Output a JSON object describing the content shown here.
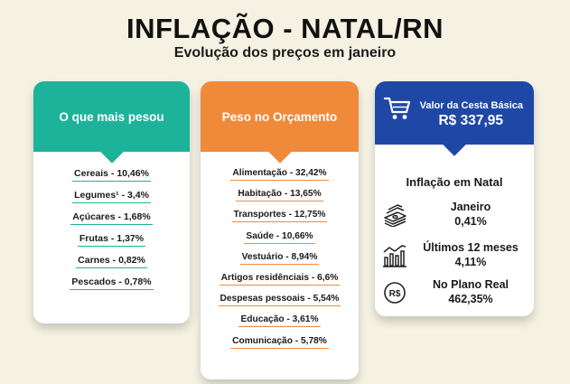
{
  "header": {
    "title": "INFLAÇÃO - NATAL/RN",
    "subtitle": "Evolução dos preços em janeiro"
  },
  "card_mais_pesou": {
    "title": "O que mais pesou",
    "color": "#1db39b",
    "items": [
      "Cereais - 10,46%",
      "Legumes¹ - 3,4%",
      "Açúcares - 1,68%",
      "Frutas - 1,37%",
      "Carnes - 0,82%",
      "Pescados - 0,78%"
    ]
  },
  "card_orcamento": {
    "title": "Peso no Orçamento",
    "color": "#f08a3b",
    "items": [
      "Alimentação - 32,42%",
      "Habitação - 13,65%",
      "Transportes - 12,75%",
      "Saúde - 10,66%",
      "Vestuário - 8,94%",
      "Artigos residênciais - 6,6%",
      "Despesas pessoais - 5,54%",
      "Educação - 3,61%",
      "Comunicação - 5,78%"
    ]
  },
  "card_cesta": {
    "color": "#1f47a6",
    "label": "Valor da Cesta Básica",
    "value": "R$ 337,95",
    "icon": "shopping-cart-icon",
    "inflation_title": "Inflação em Natal",
    "rows": [
      {
        "icon": "money-stack-icon",
        "label": "Janeiro",
        "value": "0,41%"
      },
      {
        "icon": "bar-chart-icon",
        "label": "Últimos 12 meses",
        "value": "4,11%"
      },
      {
        "icon": "real-currency-icon",
        "label": "No Plano Real",
        "value": "462,35%"
      }
    ]
  }
}
